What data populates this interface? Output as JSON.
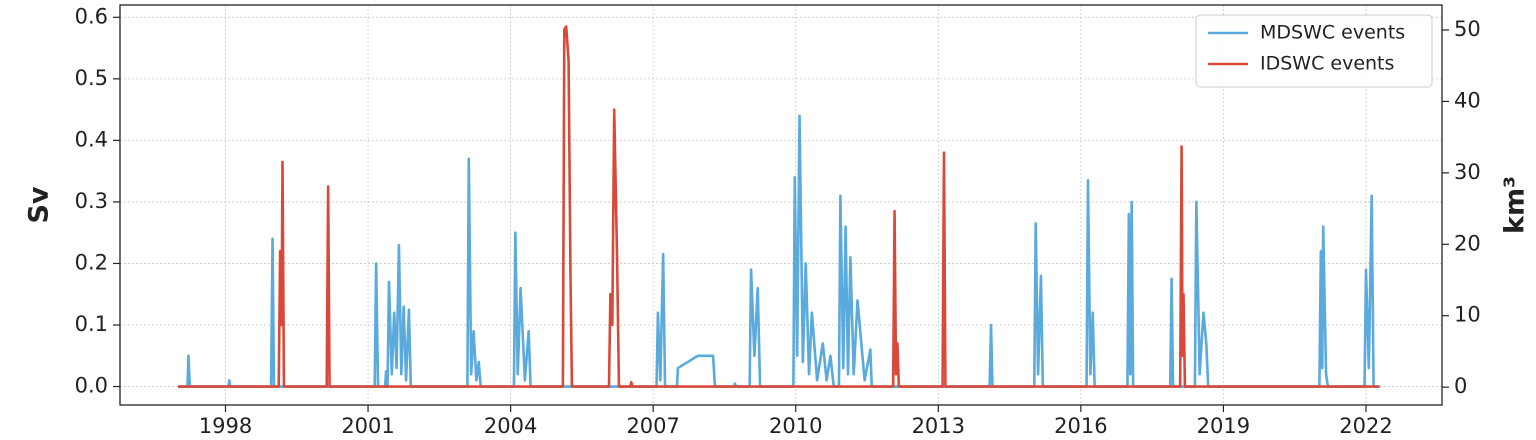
{
  "chart_data": {
    "type": "line",
    "ylabel": "Sv",
    "y2label": "km³",
    "xlim": [
      1995.78,
      2023.6
    ],
    "xticks": [
      1998,
      2001,
      2004,
      2007,
      2010,
      2013,
      2016,
      2019,
      2022
    ],
    "ylim": [
      -0.03,
      0.62
    ],
    "yticks": [
      {
        "value": 0,
        "label": "0.0"
      },
      0.1,
      0.2,
      0.3,
      0.4,
      0.5,
      0.6
    ],
    "y2lim": [
      -2.5,
      53.5
    ],
    "y2ticks": [
      0,
      10,
      20,
      30,
      40,
      50
    ],
    "grid": true,
    "legend": "upper right",
    "series": [
      {
        "name": "MDSWC events",
        "color": "#5aaade",
        "x": [
          1997.0,
          1997.2,
          1997.22,
          1997.25,
          1998.06,
          1998.08,
          1998.1,
          1998.96,
          1998.99,
          1999.02,
          2001.14,
          2001.17,
          2001.21,
          2001.36,
          2001.38,
          2001.41,
          2001.44,
          2001.5,
          2001.55,
          2001.6,
          2001.65,
          2001.7,
          2001.75,
          2001.8,
          2001.86,
          2001.9,
          2003.09,
          2003.12,
          2003.17,
          2003.22,
          2003.28,
          2003.33,
          2003.37,
          2004.07,
          2004.1,
          2004.15,
          2004.21,
          2004.3,
          2004.38,
          2004.42,
          2007.07,
          2007.1,
          2007.15,
          2007.21,
          2007.25,
          2007.5,
          2007.52,
          2007.73,
          2007.94,
          2008.26,
          2008.3,
          2008.7,
          2008.72,
          2008.74,
          2009.03,
          2009.06,
          2009.13,
          2009.2,
          2009.25,
          2009.95,
          2009.98,
          2010.03,
          2010.08,
          2010.15,
          2010.21,
          2010.28,
          2010.34,
          2010.45,
          2010.57,
          2010.65,
          2010.73,
          2010.8,
          2010.91,
          2010.94,
          2011.0,
          2011.05,
          2011.1,
          2011.15,
          2011.22,
          2011.3,
          2011.45,
          2011.57,
          2011.6,
          2014.08,
          2014.11,
          2014.14,
          2015.02,
          2015.05,
          2015.1,
          2015.16,
          2015.2,
          2016.12,
          2016.15,
          2016.2,
          2016.25,
          2016.29,
          2016.98,
          2017.01,
          2017.04,
          2017.07,
          2017.1,
          2017.88,
          2017.91,
          2017.94,
          2018.4,
          2018.43,
          2018.5,
          2018.58,
          2018.64,
          2018.68,
          2021.02,
          2021.05,
          2021.08,
          2021.1,
          2021.16,
          2021.2,
          2021.97,
          2022.0,
          2022.06,
          2022.12,
          2022.16,
          2022.3
        ],
        "values": [
          0,
          0,
          0.05,
          0,
          0,
          0.01,
          0,
          0,
          0.24,
          0,
          0,
          0.2,
          0,
          0,
          0.025,
          0,
          0.17,
          0.02,
          0.12,
          0.03,
          0.23,
          0.02,
          0.13,
          0.01,
          0.125,
          0,
          0,
          0.37,
          0.02,
          0.09,
          0.01,
          0.04,
          0,
          0,
          0.25,
          0.02,
          0.16,
          0.01,
          0.09,
          0,
          0,
          0.12,
          0.01,
          0.215,
          0,
          0,
          0.03,
          0.04,
          0.05,
          0.05,
          0,
          0,
          0.005,
          0,
          0,
          0.19,
          0.05,
          0.16,
          0,
          0,
          0.34,
          0.05,
          0.44,
          0.04,
          0.2,
          0.02,
          0.12,
          0.01,
          0.07,
          0.01,
          0.05,
          0,
          0,
          0.31,
          0.03,
          0.26,
          0.02,
          0.21,
          0.02,
          0.14,
          0.01,
          0.06,
          0,
          0,
          0.1,
          0,
          0,
          0.265,
          0.02,
          0.18,
          0,
          0,
          0.335,
          0.02,
          0.12,
          0,
          0,
          0.28,
          0.02,
          0.3,
          0,
          0,
          0.175,
          0,
          0,
          0.3,
          0.02,
          0.12,
          0.07,
          0,
          0,
          0.22,
          0.03,
          0.26,
          0.02,
          0,
          0,
          0.19,
          0.03,
          0.31,
          0,
          0
        ]
      },
      {
        "name": "IDSWC events",
        "color": "#d9493a",
        "x": [
          1997.0,
          1999.12,
          1999.15,
          1999.18,
          1999.2,
          1999.23,
          2000.13,
          2000.16,
          2000.19,
          2005.1,
          2005.13,
          2005.17,
          2005.22,
          2005.26,
          2005.29,
          2006.07,
          2006.1,
          2006.14,
          2006.18,
          2006.24,
          2006.28,
          2006.52,
          2006.54,
          2006.56,
          2012.05,
          2012.08,
          2012.11,
          2012.14,
          2012.17,
          2013.09,
          2013.12,
          2013.15,
          2018.09,
          2018.12,
          2018.14,
          2018.16,
          2018.19,
          2022.27
        ],
        "values": [
          0,
          0,
          0.22,
          0.1,
          0.365,
          0,
          0,
          0.325,
          0,
          0,
          0.58,
          0.585,
          0.53,
          0.18,
          0,
          0,
          0.15,
          0.1,
          0.45,
          0.21,
          0,
          0,
          0.007,
          0,
          0,
          0.285,
          0.02,
          0.07,
          0,
          0,
          0.38,
          0,
          0,
          0.39,
          0.05,
          0.15,
          0,
          0
        ]
      }
    ]
  }
}
